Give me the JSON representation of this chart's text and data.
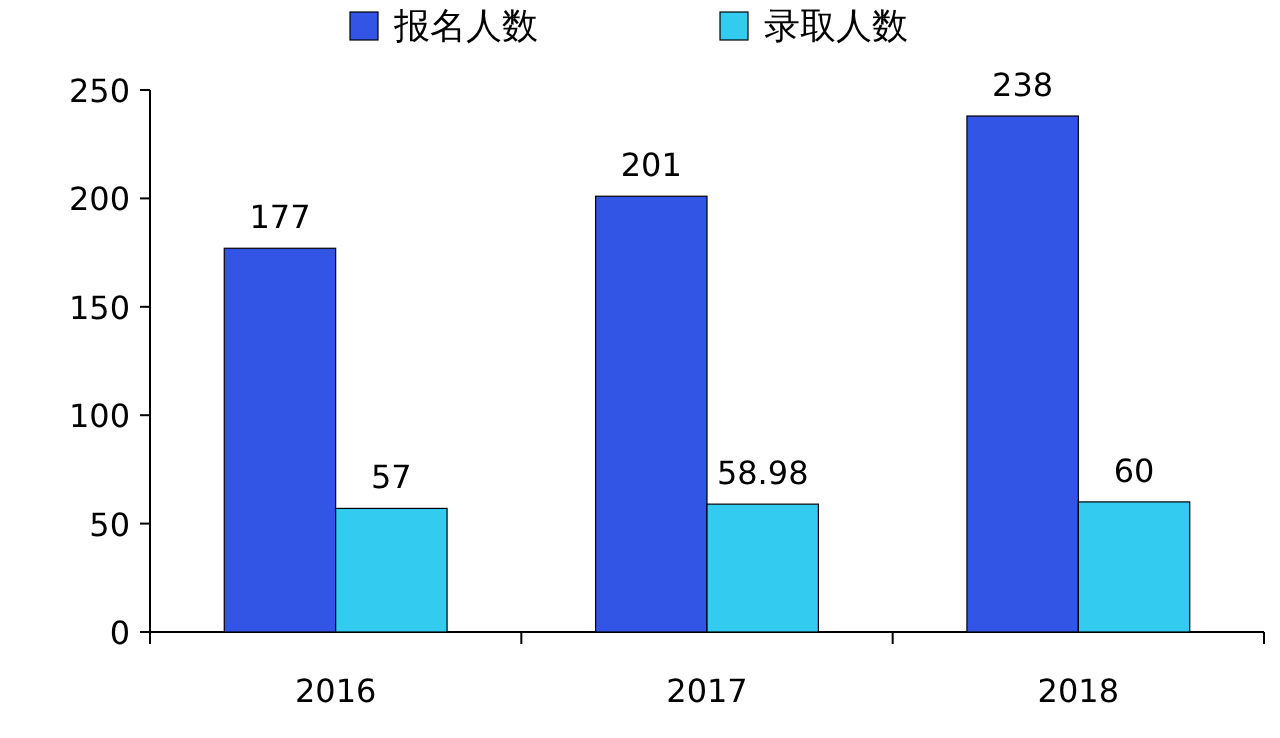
{
  "chart_data": {
    "type": "bar",
    "categories": [
      "2016",
      "2017",
      "2018"
    ],
    "series": [
      {
        "name": "报名人数",
        "color": "#3355e6",
        "values": [
          177,
          201,
          238
        ]
      },
      {
        "name": "录取人数",
        "color": "#33ccf0",
        "values": [
          57,
          58.98,
          60
        ]
      }
    ],
    "ylim": [
      0,
      250
    ],
    "yticks": [
      0,
      50,
      100,
      150,
      200,
      250
    ],
    "data_labels": true,
    "legend": "top",
    "grid": false
  }
}
